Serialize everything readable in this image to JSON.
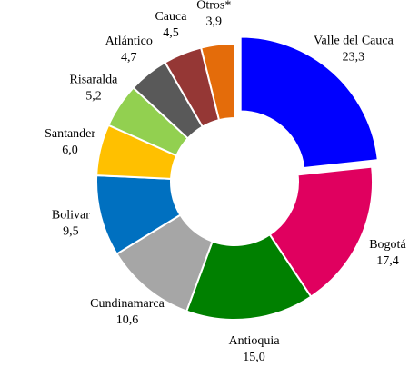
{
  "chart_data": {
    "type": "donut",
    "categories": [
      "Valle del Cauca",
      "Bogotá",
      "Antioquia",
      "Cundinamarca",
      "Bolivar",
      "Santander",
      "Risaralda",
      "Atlántico",
      "Cauca",
      "Otros*"
    ],
    "values": [
      23.3,
      17.4,
      15.0,
      10.6,
      9.5,
      6.0,
      5.2,
      4.7,
      4.5,
      3.9
    ],
    "value_labels": [
      "23,3",
      "17,4",
      "15,0",
      "10,6",
      "9,5",
      "6,0",
      "5,2",
      "4,7",
      "4,5",
      "3,9"
    ],
    "colors": [
      "#0000ff",
      "#e0005f",
      "#008000",
      "#a6a6a6",
      "#0070c0",
      "#ffc000",
      "#92d050",
      "#595959",
      "#953735",
      "#e46c0a"
    ],
    "exploded": [
      0
    ]
  }
}
